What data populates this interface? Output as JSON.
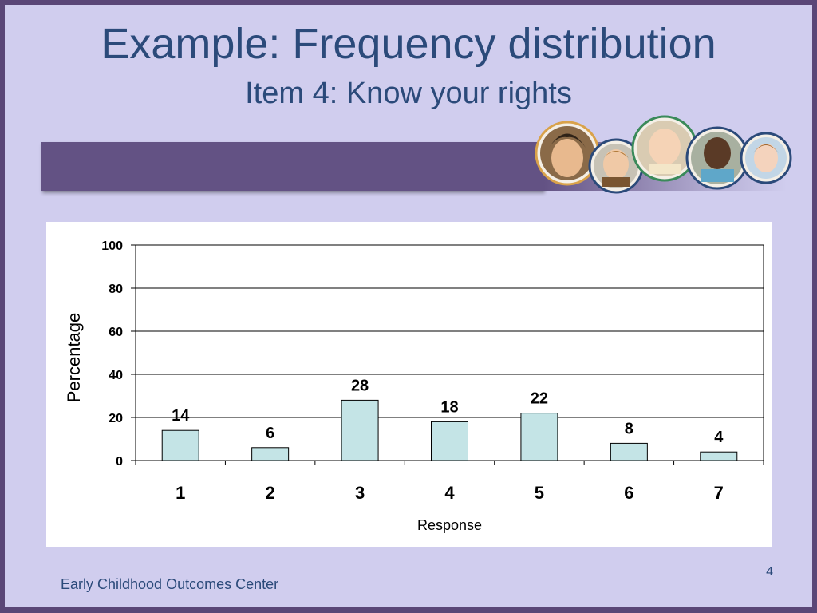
{
  "slide": {
    "title": "Example: Frequency distribution",
    "subtitle": "Item 4: Know your rights",
    "footer": "Early Childhood Outcomes Center",
    "page_number": "4"
  },
  "colors": {
    "background": "#d0cdee",
    "frame": "#5a4677",
    "band": "#635284",
    "title_text": "#2b4a7a",
    "bar_fill": "#c4e4e6"
  },
  "chart_data": {
    "type": "bar",
    "categories": [
      "1",
      "2",
      "3",
      "4",
      "5",
      "6",
      "7"
    ],
    "values": [
      14,
      6,
      28,
      18,
      22,
      8,
      4
    ],
    "xlabel": "Response",
    "ylabel": "Percentage",
    "ylim": [
      0,
      100
    ],
    "yticks": [
      0,
      20,
      40,
      60,
      80,
      100
    ],
    "grid": true,
    "legend": "none"
  }
}
